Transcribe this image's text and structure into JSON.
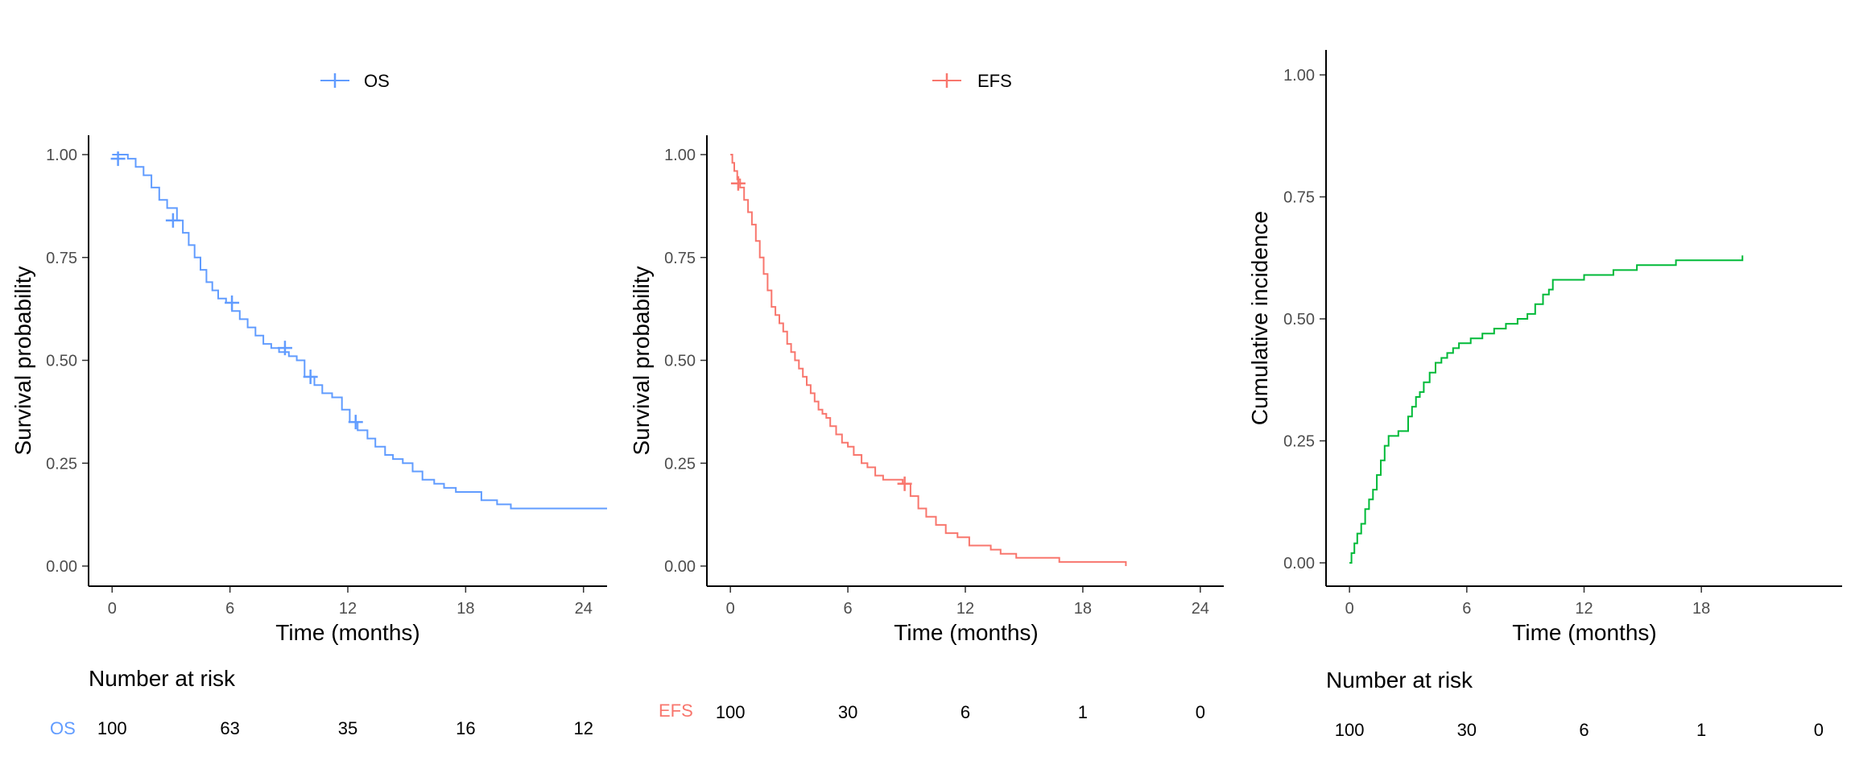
{
  "colors": {
    "os": "#619CFF",
    "efs": "#F8766D",
    "ci": "#00BA38",
    "axis": "#000000",
    "tick_text": "#4d4d4d"
  },
  "legends": {
    "os": {
      "label": "OS",
      "color": "#619CFF"
    },
    "efs": {
      "label": "EFS",
      "color": "#F8766D"
    }
  },
  "risk_tables": {
    "os": {
      "title": "Number at risk",
      "strata_label": "OS",
      "times": [
        0,
        6,
        12,
        18,
        24
      ],
      "values": [
        "100",
        "63",
        "35",
        "16",
        "12"
      ]
    },
    "efs": {
      "title": "",
      "strata_label": "EFS",
      "times": [
        0,
        6,
        12,
        18,
        24
      ],
      "values": [
        "100",
        "30",
        "6",
        "1",
        "0"
      ]
    },
    "ci": {
      "title": "Number at risk",
      "strata_label": "",
      "times": [
        0,
        6,
        12,
        18,
        24
      ],
      "values": [
        "100",
        "30",
        "6",
        "1",
        "0"
      ]
    }
  },
  "chart_data": [
    {
      "id": "os",
      "type": "line",
      "step": true,
      "xlabel": "Time (months)",
      "ylabel": "Survival probability",
      "xlim": [
        -1.2,
        25.2
      ],
      "ylim": [
        -0.05,
        1.05
      ],
      "xticks": [
        0,
        6,
        12,
        18,
        24
      ],
      "xtick_labels": [
        "0",
        "6",
        "12",
        "18",
        "24"
      ],
      "yticks": [
        0,
        0.25,
        0.5,
        0.75,
        1
      ],
      "ytick_labels": [
        "0.00",
        "0.25",
        "0.50",
        "0.75",
        "1.00"
      ],
      "legend_position": "top",
      "series": [
        {
          "name": "OS",
          "color": "#619CFF",
          "x": [
            0,
            0.8,
            1.2,
            1.6,
            2.0,
            2.4,
            2.8,
            3.3,
            3.6,
            3.9,
            4.2,
            4.5,
            4.8,
            5.1,
            5.4,
            5.8,
            6.1,
            6.5,
            6.9,
            7.3,
            7.7,
            8.1,
            8.5,
            9.0,
            9.4,
            9.8,
            10.3,
            10.7,
            11.2,
            11.7,
            12.1,
            12.5,
            13.0,
            13.4,
            13.9,
            14.3,
            14.8,
            15.3,
            15.8,
            16.4,
            16.9,
            17.5,
            18.8,
            19.6,
            20.3,
            25.2
          ],
          "y": [
            1.0,
            0.99,
            0.97,
            0.95,
            0.92,
            0.89,
            0.87,
            0.84,
            0.81,
            0.78,
            0.75,
            0.72,
            0.69,
            0.67,
            0.65,
            0.64,
            0.62,
            0.6,
            0.58,
            0.56,
            0.54,
            0.53,
            0.52,
            0.51,
            0.5,
            0.46,
            0.44,
            0.42,
            0.41,
            0.38,
            0.35,
            0.33,
            0.31,
            0.29,
            0.27,
            0.26,
            0.25,
            0.23,
            0.21,
            0.2,
            0.19,
            0.18,
            0.16,
            0.15,
            0.14,
            0.14
          ],
          "censor_x": [
            0.3,
            3.1,
            6.1,
            8.8,
            10.1,
            12.4
          ],
          "censor_y": [
            0.99,
            0.84,
            0.64,
            0.53,
            0.46,
            0.35
          ]
        }
      ]
    },
    {
      "id": "efs",
      "type": "line",
      "step": true,
      "xlabel": "Time (months)",
      "ylabel": "Survival probability",
      "xlim": [
        -1.2,
        25.2
      ],
      "ylim": [
        -0.05,
        1.05
      ],
      "xticks": [
        0,
        6,
        12,
        18,
        24
      ],
      "xtick_labels": [
        "0",
        "6",
        "12",
        "18",
        "24"
      ],
      "yticks": [
        0,
        0.25,
        0.5,
        0.75,
        1
      ],
      "ytick_labels": [
        "0.00",
        "0.25",
        "0.50",
        "0.75",
        "1.00"
      ],
      "legend_position": "top",
      "series": [
        {
          "name": "EFS",
          "color": "#F8766D",
          "x": [
            0,
            0.1,
            0.2,
            0.35,
            0.5,
            0.7,
            0.9,
            1.1,
            1.3,
            1.5,
            1.7,
            1.9,
            2.1,
            2.3,
            2.5,
            2.7,
            2.9,
            3.1,
            3.3,
            3.5,
            3.7,
            3.9,
            4.1,
            4.3,
            4.5,
            4.7,
            4.9,
            5.1,
            5.4,
            5.7,
            6.0,
            6.3,
            6.7,
            7.0,
            7.4,
            7.8,
            8.3,
            8.8,
            9.2,
            9.6,
            10.0,
            10.5,
            11.0,
            11.6,
            12.2,
            13.3,
            13.8,
            14.6,
            16.8,
            20.2
          ],
          "y": [
            1.0,
            0.98,
            0.96,
            0.94,
            0.92,
            0.89,
            0.86,
            0.83,
            0.79,
            0.75,
            0.71,
            0.67,
            0.63,
            0.61,
            0.59,
            0.57,
            0.54,
            0.52,
            0.5,
            0.48,
            0.46,
            0.44,
            0.42,
            0.4,
            0.38,
            0.37,
            0.36,
            0.34,
            0.32,
            0.3,
            0.29,
            0.27,
            0.25,
            0.24,
            0.22,
            0.21,
            0.21,
            0.2,
            0.17,
            0.14,
            0.12,
            0.1,
            0.08,
            0.07,
            0.05,
            0.04,
            0.03,
            0.02,
            0.01,
            0.0
          ],
          "censor_x": [
            0.4,
            8.9
          ],
          "censor_y": [
            0.93,
            0.2
          ]
        }
      ]
    },
    {
      "id": "ci",
      "type": "line",
      "step": true,
      "xlabel": "Time (months)",
      "ylabel": "Cumulative incidence",
      "xlim": [
        -1.2,
        25.2
      ],
      "ylim": [
        -0.05,
        1.05
      ],
      "xticks": [
        0,
        6,
        12,
        18
      ],
      "xtick_labels": [
        "0",
        "6",
        "12",
        "18"
      ],
      "yticks": [
        0,
        0.25,
        0.5,
        0.75,
        1
      ],
      "ytick_labels": [
        "0.00",
        "0.25",
        "0.50",
        "0.75",
        "1.00"
      ],
      "legend_position": "none",
      "series": [
        {
          "name": "",
          "color": "#00BA38",
          "x": [
            0,
            0.1,
            0.25,
            0.4,
            0.6,
            0.8,
            1.0,
            1.2,
            1.4,
            1.6,
            1.8,
            2.0,
            2.2,
            2.5,
            3.0,
            3.2,
            3.4,
            3.6,
            3.8,
            4.1,
            4.4,
            4.7,
            5.0,
            5.3,
            5.6,
            5.9,
            6.2,
            6.8,
            7.4,
            8.0,
            8.6,
            9.1,
            9.5,
            9.9,
            10.2,
            10.4,
            10.6,
            12.0,
            13.5,
            14.7,
            16.7,
            20.1
          ],
          "y": [
            0.0,
            0.02,
            0.04,
            0.06,
            0.08,
            0.11,
            0.13,
            0.15,
            0.18,
            0.21,
            0.24,
            0.26,
            0.26,
            0.27,
            0.3,
            0.32,
            0.34,
            0.35,
            0.37,
            0.39,
            0.41,
            0.42,
            0.43,
            0.44,
            0.45,
            0.45,
            0.46,
            0.47,
            0.48,
            0.49,
            0.5,
            0.51,
            0.53,
            0.55,
            0.56,
            0.58,
            0.58,
            0.59,
            0.6,
            0.61,
            0.62,
            0.63
          ],
          "censor_x": [],
          "censor_y": []
        }
      ]
    }
  ]
}
